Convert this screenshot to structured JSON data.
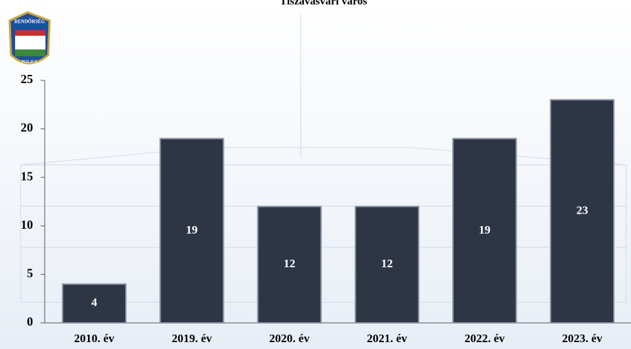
{
  "logo": {
    "top": "RENDŐRSÉG",
    "bottom": "POLICE"
  },
  "chart_data": {
    "type": "bar",
    "title": "Tiszavasvári város",
    "categories": [
      "2010. év",
      "2019. év",
      "2020. év",
      "2021. év",
      "2022. év",
      "2023. év"
    ],
    "values": [
      4,
      19,
      12,
      12,
      19,
      23
    ],
    "color": "#2e3646",
    "ylim": [
      0,
      25
    ],
    "yticks": [
      0,
      5,
      10,
      15,
      20,
      25
    ]
  }
}
